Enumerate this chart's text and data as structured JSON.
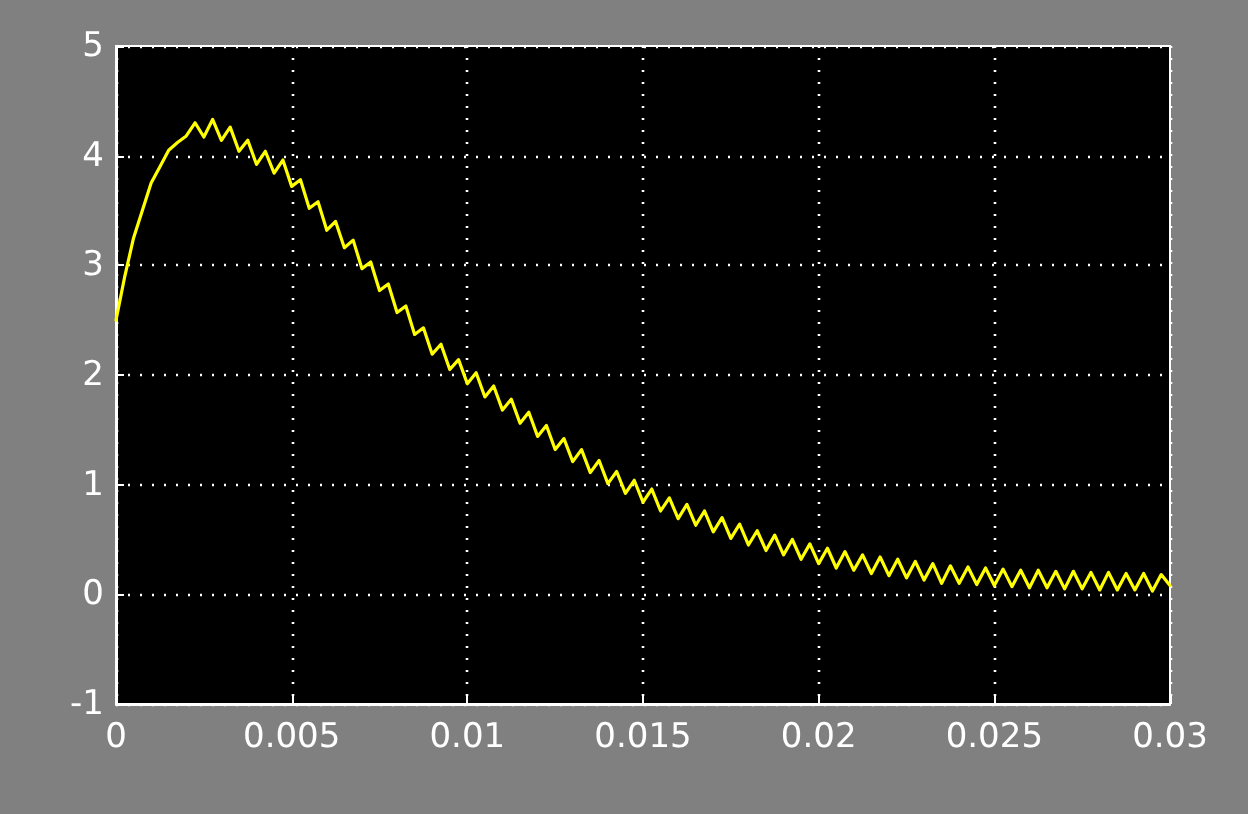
{
  "chart_data": {
    "type": "line",
    "xlim": [
      0,
      0.03
    ],
    "xticks": [
      0,
      0.005,
      0.01,
      0.015,
      0.02,
      0.025,
      0.03
    ],
    "ylim": [
      -1,
      5
    ],
    "yticks": [
      -1,
      0,
      1,
      2,
      3,
      4,
      5
    ],
    "grid": true,
    "marker": "none",
    "line_style": "solid",
    "series": [
      {
        "color": "#ffff00",
        "x": [
          0,
          0.00025,
          0.0005,
          0.00075,
          0.001,
          0.00125,
          0.0015,
          0.00175,
          0.002,
          0.00225,
          0.0025,
          0.00275,
          0.003,
          0.00325,
          0.0035,
          0.00375,
          0.004,
          0.00425,
          0.0045,
          0.00475,
          0.005,
          0.00525,
          0.0055,
          0.00575,
          0.006,
          0.00625,
          0.0065,
          0.00675,
          0.007,
          0.00725,
          0.0075,
          0.00775,
          0.008,
          0.00825,
          0.0085,
          0.00875,
          0.009,
          0.00925,
          0.0095,
          0.00975,
          0.01,
          0.01025,
          0.0105,
          0.01075,
          0.011,
          0.01125,
          0.0115,
          0.01175,
          0.012,
          0.01225,
          0.0125,
          0.01275,
          0.013,
          0.01325,
          0.0135,
          0.01375,
          0.014,
          0.01425,
          0.0145,
          0.01475,
          0.015,
          0.01525,
          0.0155,
          0.01575,
          0.016,
          0.01625,
          0.0165,
          0.01675,
          0.017,
          0.01725,
          0.0175,
          0.01775,
          0.018,
          0.01825,
          0.0185,
          0.01875,
          0.019,
          0.01925,
          0.0195,
          0.01975,
          0.02,
          0.02025,
          0.0205,
          0.02075,
          0.021,
          0.02125,
          0.0215,
          0.02175,
          0.022,
          0.02225,
          0.0225,
          0.02275,
          0.023,
          0.02325,
          0.0235,
          0.02375,
          0.024,
          0.02425,
          0.0245,
          0.02475,
          0.025,
          0.02525,
          0.0255,
          0.02575,
          0.026,
          0.02625,
          0.0265,
          0.02675,
          0.027,
          0.02725,
          0.0275,
          0.02775,
          0.028,
          0.02825,
          0.0285,
          0.02875,
          0.029,
          0.02925,
          0.0295,
          0.02975,
          0.03
        ],
        "values": [
          2.5,
          2.9,
          3.25,
          3.5,
          3.75,
          3.9,
          4.05,
          4.12,
          4.18,
          4.3,
          4.17,
          4.33,
          4.14,
          4.26,
          4.04,
          4.14,
          3.92,
          4.04,
          3.84,
          3.96,
          3.72,
          3.78,
          3.52,
          3.58,
          3.32,
          3.4,
          3.16,
          3.23,
          2.97,
          3.03,
          2.77,
          2.83,
          2.57,
          2.63,
          2.37,
          2.43,
          2.19,
          2.28,
          2.05,
          2.14,
          1.92,
          2.02,
          1.8,
          1.9,
          1.68,
          1.78,
          1.56,
          1.66,
          1.44,
          1.54,
          1.32,
          1.42,
          1.21,
          1.32,
          1.11,
          1.22,
          1.01,
          1.12,
          0.92,
          1.04,
          0.84,
          0.96,
          0.76,
          0.88,
          0.69,
          0.82,
          0.63,
          0.76,
          0.57,
          0.7,
          0.51,
          0.64,
          0.45,
          0.58,
          0.4,
          0.54,
          0.36,
          0.5,
          0.32,
          0.46,
          0.28,
          0.42,
          0.24,
          0.39,
          0.22,
          0.36,
          0.19,
          0.34,
          0.17,
          0.32,
          0.15,
          0.3,
          0.13,
          0.28,
          0.1,
          0.26,
          0.1,
          0.25,
          0.09,
          0.24,
          0.08,
          0.23,
          0.07,
          0.22,
          0.06,
          0.22,
          0.06,
          0.21,
          0.05,
          0.21,
          0.05,
          0.2,
          0.04,
          0.2,
          0.04,
          0.19,
          0.04,
          0.19,
          0.03,
          0.18,
          0.08
        ]
      }
    ]
  }
}
